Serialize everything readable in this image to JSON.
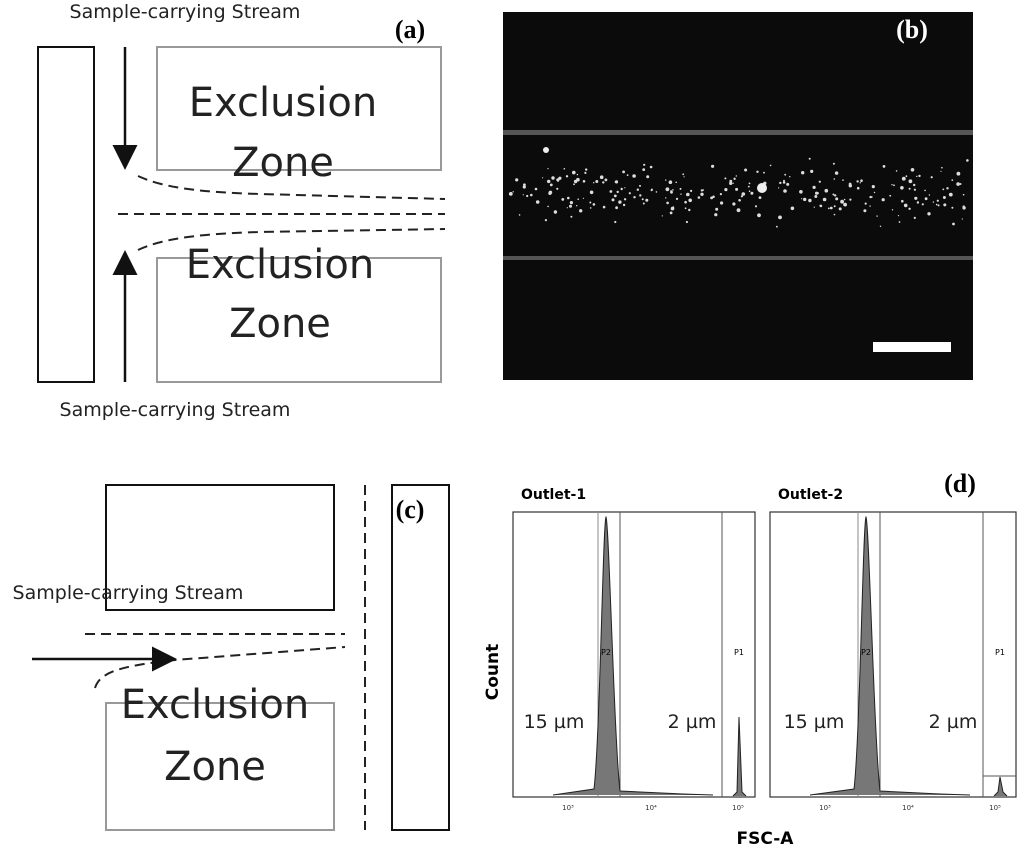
{
  "panels": {
    "a": {
      "label": "(a)",
      "top_stream": "Sample-carrying Stream",
      "bottom_stream": "Sample-carrying Stream",
      "zones": [
        [
          "Exclusion",
          "Zone"
        ],
        [
          "Exclusion",
          "Zone"
        ]
      ]
    },
    "b": {
      "label": "(b)"
    },
    "c": {
      "label": "(c)",
      "stream": "Sample-carrying Stream",
      "zone": [
        "Exclusion",
        "Zone"
      ]
    },
    "d": {
      "label": "(d)",
      "y_label": "Count",
      "x_label": "FSC-A",
      "plots": [
        {
          "title": "Outlet-1",
          "gates": [
            "P2",
            "P1"
          ],
          "sizes": [
            "15 µm",
            "2 µm"
          ],
          "ticks": [
            "10³",
            "10⁴",
            "10⁵"
          ]
        },
        {
          "title": "Outlet-2",
          "gates": [
            "P2",
            "P1"
          ],
          "sizes": [
            "15 µm",
            "2 µm"
          ],
          "ticks": [
            "10³",
            "10⁴",
            "10⁵"
          ]
        }
      ]
    }
  }
}
